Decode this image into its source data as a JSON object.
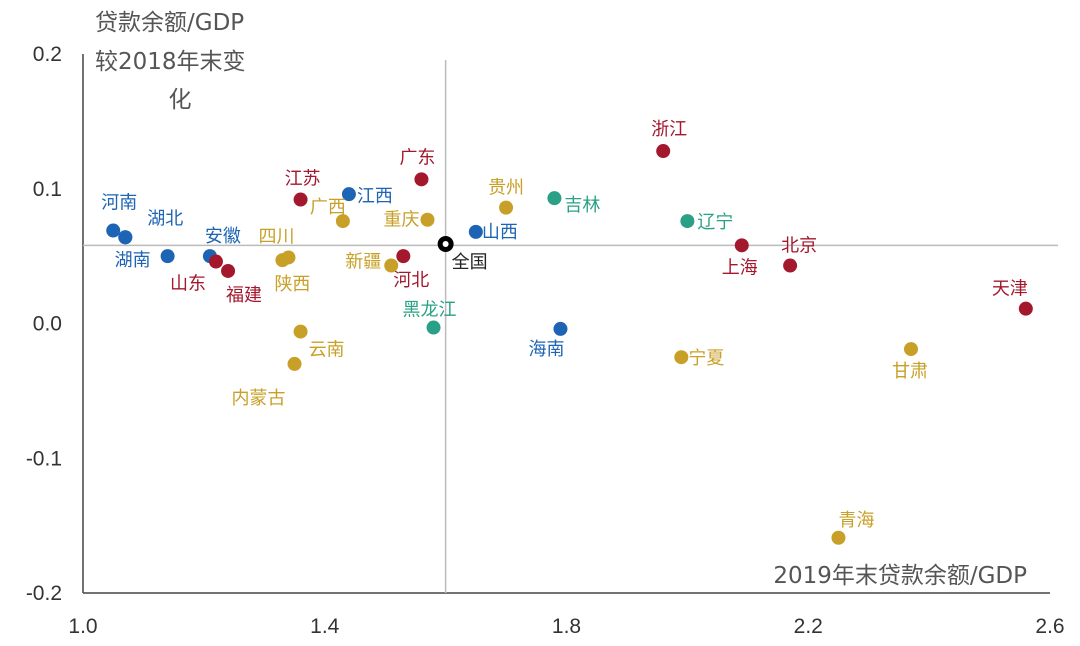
{
  "chart_data": {
    "type": "scatter",
    "title": "",
    "xlabel": "2019年末贷款余额/GDP",
    "ylabel_lines": [
      "贷款余额/GDP",
      "较2018年末变",
      "化"
    ],
    "xlim": [
      1.0,
      2.6
    ],
    "ylim": [
      -0.2,
      0.2
    ],
    "xticks": [
      "1.0",
      "1.4",
      "1.8",
      "2.2",
      "2.6"
    ],
    "yticks": [
      "0.2",
      "0.1",
      "0.0",
      "-0.1",
      "-0.2"
    ],
    "reference_lines": {
      "x": 1.6,
      "y": 0.058
    },
    "grid": false,
    "colors": {
      "east": "#a3182d",
      "central": "#1e64b4",
      "west": "#c8a028",
      "northeast": "#2aa086",
      "national": "#000000"
    },
    "points": [
      {
        "label": "河南",
        "x": 1.05,
        "y": 0.069,
        "group": "central"
      },
      {
        "label": "",
        "x": 1.07,
        "y": 0.064,
        "group": "central"
      },
      {
        "label": "湖北",
        "x": 1.07,
        "y": 0.064,
        "group": "central"
      },
      {
        "label": "湖南",
        "x": 1.14,
        "y": 0.05,
        "group": "central"
      },
      {
        "label": "安徽",
        "x": 1.21,
        "y": 0.05,
        "group": "central"
      },
      {
        "label": "山东",
        "x": 1.22,
        "y": 0.046,
        "group": "east"
      },
      {
        "label": "福建",
        "x": 1.24,
        "y": 0.039,
        "group": "east"
      },
      {
        "label": "四川",
        "x": 1.34,
        "y": 0.049,
        "group": "west"
      },
      {
        "label": "陕西",
        "x": 1.33,
        "y": 0.047,
        "group": "west"
      },
      {
        "label": "江苏",
        "x": 1.36,
        "y": 0.092,
        "group": "east"
      },
      {
        "label": "广西",
        "x": 1.43,
        "y": 0.076,
        "group": "west"
      },
      {
        "label": "江西",
        "x": 1.44,
        "y": 0.096,
        "group": "central"
      },
      {
        "label": "云南",
        "x": 1.36,
        "y": -0.006,
        "group": "west"
      },
      {
        "label": "内蒙古",
        "x": 1.35,
        "y": -0.03,
        "group": "west"
      },
      {
        "label": "新疆",
        "x": 1.51,
        "y": 0.043,
        "group": "west"
      },
      {
        "label": "河北",
        "x": 1.53,
        "y": 0.05,
        "group": "east"
      },
      {
        "label": "重庆",
        "x": 1.57,
        "y": 0.077,
        "group": "west"
      },
      {
        "label": "广东",
        "x": 1.56,
        "y": 0.107,
        "group": "east"
      },
      {
        "label": "黑龙江",
        "x": 1.58,
        "y": -0.003,
        "group": "northeast"
      },
      {
        "label": "全国",
        "x": 1.6,
        "y": 0.059,
        "group": "national"
      },
      {
        "label": "山西",
        "x": 1.65,
        "y": 0.068,
        "group": "central"
      },
      {
        "label": "贵州",
        "x": 1.7,
        "y": 0.086,
        "group": "west"
      },
      {
        "label": "吉林",
        "x": 1.78,
        "y": 0.093,
        "group": "northeast"
      },
      {
        "label": "海南",
        "x": 1.79,
        "y": -0.004,
        "group": "central"
      },
      {
        "label": "浙江",
        "x": 1.96,
        "y": 0.128,
        "group": "east"
      },
      {
        "label": "辽宁",
        "x": 2.0,
        "y": 0.076,
        "group": "northeast"
      },
      {
        "label": "宁夏",
        "x": 1.99,
        "y": -0.025,
        "group": "west"
      },
      {
        "label": "上海",
        "x": 2.09,
        "y": 0.058,
        "group": "east"
      },
      {
        "label": "北京",
        "x": 2.17,
        "y": 0.043,
        "group": "east"
      },
      {
        "label": "甘肃",
        "x": 2.37,
        "y": -0.019,
        "group": "west"
      },
      {
        "label": "青海",
        "x": 2.25,
        "y": -0.159,
        "group": "west"
      },
      {
        "label": "天津",
        "x": 2.56,
        "y": 0.011,
        "group": "east"
      }
    ]
  }
}
